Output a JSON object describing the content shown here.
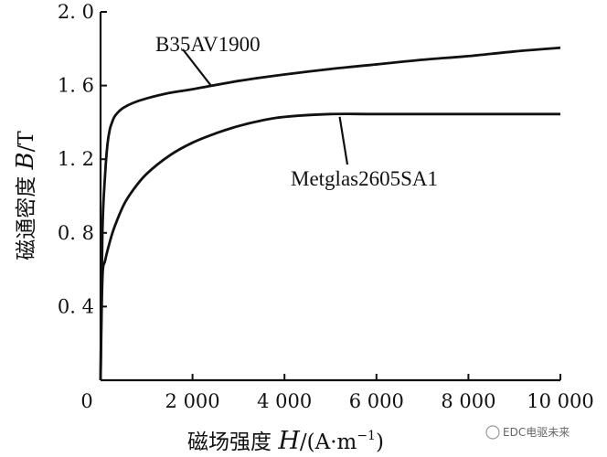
{
  "chart_data": {
    "type": "line",
    "title": "",
    "xlabel": {
      "prefix": "磁场强度 ",
      "symbol": "H",
      "unit_open": "/(A·m",
      "exponent": "−1",
      "unit_close": ")"
    },
    "ylabel": {
      "prefix": "磁通密度 ",
      "symbol": "B",
      "unit": "/T"
    },
    "xlim": [
      0,
      10000
    ],
    "ylim": [
      0,
      2.0
    ],
    "x_ticks": [
      {
        "value": 0,
        "label": "0"
      },
      {
        "value": 2000,
        "label": "2 000"
      },
      {
        "value": 4000,
        "label": "4 000"
      },
      {
        "value": 6000,
        "label": "6 000"
      },
      {
        "value": 8000,
        "label": "8 000"
      },
      {
        "value": 10000,
        "label": "10 000"
      }
    ],
    "y_ticks": [
      {
        "value": 0.4,
        "label": "0. 4"
      },
      {
        "value": 0.8,
        "label": "0. 8"
      },
      {
        "value": 1.2,
        "label": "1. 2"
      },
      {
        "value": 1.6,
        "label": "1. 6"
      },
      {
        "value": 2.0,
        "label": "2. 0"
      }
    ],
    "grid": false,
    "series": [
      {
        "name": "B35AV1900",
        "x": [
          0,
          40,
          100,
          150,
          200,
          250,
          300,
          400,
          500,
          700,
          1000,
          1500,
          2000,
          3000,
          4000,
          5000,
          6000,
          7000,
          8000,
          9000,
          10000
        ],
        "y": [
          0,
          0.8,
          1.12,
          1.28,
          1.36,
          1.4,
          1.43,
          1.46,
          1.48,
          1.505,
          1.53,
          1.56,
          1.58,
          1.625,
          1.66,
          1.69,
          1.715,
          1.74,
          1.76,
          1.785,
          1.805
        ]
      },
      {
        "name": "Metglas2605SA1",
        "x": [
          0,
          40,
          100,
          200,
          300,
          500,
          700,
          1000,
          1500,
          2000,
          2500,
          3000,
          3500,
          4000,
          5000,
          6000,
          8000,
          10000
        ],
        "y": [
          0,
          0.55,
          0.65,
          0.75,
          0.83,
          0.95,
          1.03,
          1.12,
          1.22,
          1.29,
          1.34,
          1.38,
          1.41,
          1.43,
          1.445,
          1.445,
          1.445,
          1.445
        ]
      }
    ],
    "annotations": [
      {
        "series": 0,
        "text": "B35AV1900",
        "at_x": 2400,
        "at_y": 1.6
      },
      {
        "series": 1,
        "text": "Metglas2605SA1",
        "at_x": 5200,
        "at_y": 1.43
      }
    ]
  },
  "watermark": {
    "text": "EDC电驱未来"
  }
}
